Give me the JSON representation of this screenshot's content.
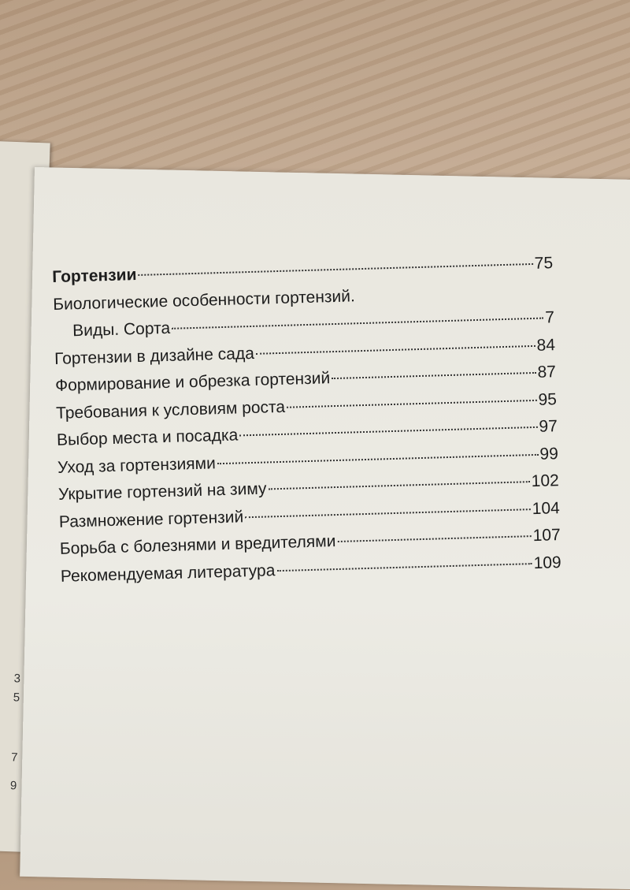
{
  "toc": {
    "entries": [
      {
        "title": "Гортензии",
        "page": 75
      },
      {
        "title_lines": [
          "Биологические особенности гортензий.",
          "Виды. Сорта"
        ],
        "page": 7
      },
      {
        "title": "Гортензии в дизайне сада",
        "page": 84
      },
      {
        "title": "Формирование и обрезка гортензий",
        "page": 87
      },
      {
        "title": "Требования к условиям роста",
        "page": 95
      },
      {
        "title": "Выбор места и посадка",
        "page": 97
      },
      {
        "title": "Уход за гортензиями",
        "page": 99
      },
      {
        "title": "Укрытие гортензий на зиму",
        "page": 102
      },
      {
        "title": "Размножение гортензий",
        "page": 104
      },
      {
        "title": "Борьба с болезнями и вредителями",
        "page": 107
      },
      {
        "title": "Рекомендуемая литература",
        "page": 109
      }
    ]
  },
  "left_page": {
    "numbers": [
      3,
      5,
      7,
      9
    ]
  }
}
